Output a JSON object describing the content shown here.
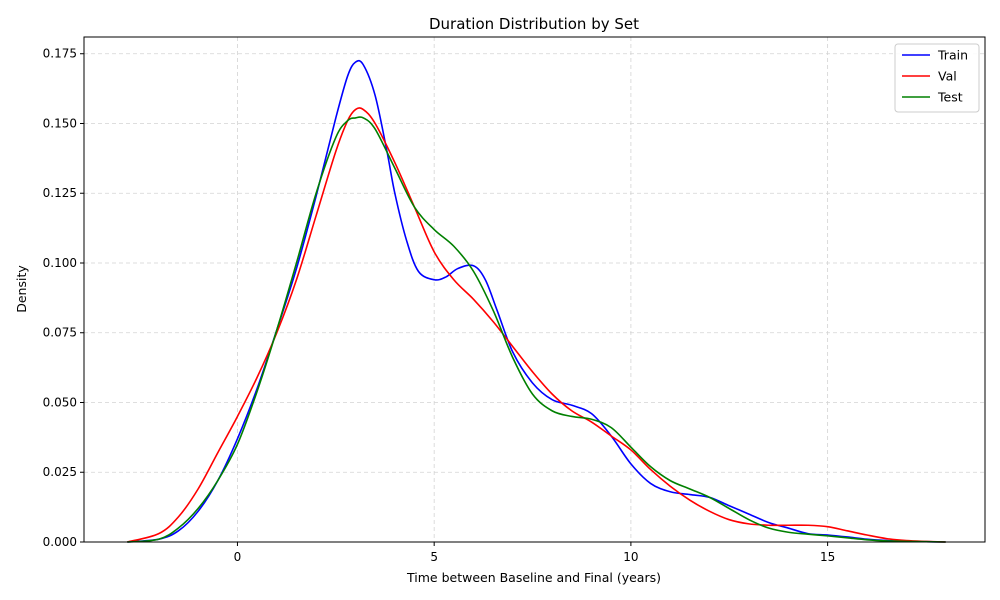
{
  "chart_data": {
    "type": "line",
    "title": "Duration Distribution by Set",
    "xlabel": "Time between Baseline and Final (years)",
    "ylabel": "Density",
    "xlim": [
      -3.9,
      19.0
    ],
    "ylim": [
      0,
      0.181
    ],
    "xticks": [
      0,
      5,
      10,
      15
    ],
    "xtick_labels": [
      "0",
      "5",
      "10",
      "15"
    ],
    "yticks": [
      0,
      0.025,
      0.05,
      0.075,
      0.1,
      0.125,
      0.15,
      0.175
    ],
    "ytick_labels": [
      "0.000",
      "0.025",
      "0.050",
      "0.075",
      "0.100",
      "0.125",
      "0.150",
      "0.175"
    ],
    "grid": true,
    "legend_position": "top-right",
    "series": [
      {
        "name": "Train",
        "color": "#0000ff",
        "x": [
          -2.8,
          -2.0,
          -1.5,
          -1.0,
          -0.5,
          0.0,
          0.5,
          1.0,
          1.5,
          2.0,
          2.5,
          2.8,
          3.0,
          3.2,
          3.5,
          3.8,
          4.0,
          4.3,
          4.6,
          5.0,
          5.3,
          5.6,
          6.0,
          6.3,
          6.6,
          7.0,
          7.5,
          8.0,
          8.5,
          9.0,
          9.5,
          10.0,
          10.5,
          11.0,
          11.5,
          12.0,
          12.5,
          13.0,
          13.5,
          14.0,
          14.5,
          15.0,
          15.5,
          16.0,
          16.5,
          17.0,
          17.5,
          18.0
        ],
        "values": [
          0.0,
          0.001,
          0.004,
          0.011,
          0.022,
          0.037,
          0.055,
          0.076,
          0.098,
          0.124,
          0.152,
          0.167,
          0.172,
          0.171,
          0.16,
          0.14,
          0.125,
          0.108,
          0.097,
          0.094,
          0.095,
          0.098,
          0.099,
          0.094,
          0.083,
          0.068,
          0.057,
          0.051,
          0.049,
          0.046,
          0.038,
          0.028,
          0.021,
          0.018,
          0.017,
          0.016,
          0.013,
          0.01,
          0.007,
          0.005,
          0.003,
          0.0025,
          0.0018,
          0.001,
          0.0005,
          0.0002,
          0.0001,
          0.0
        ],
        "label_y": 55
      },
      {
        "name": "Val",
        "color": "#ff0000",
        "x": [
          -2.8,
          -2.0,
          -1.5,
          -1.0,
          -0.5,
          0.0,
          0.5,
          1.0,
          1.5,
          2.0,
          2.5,
          2.8,
          3.0,
          3.2,
          3.5,
          4.0,
          4.5,
          5.0,
          5.5,
          6.0,
          6.5,
          7.0,
          7.5,
          8.0,
          8.5,
          9.0,
          9.5,
          10.0,
          10.5,
          11.0,
          11.5,
          12.0,
          12.5,
          13.0,
          13.5,
          14.0,
          14.5,
          15.0,
          15.5,
          16.0,
          16.5,
          17.0,
          17.5,
          18.0
        ],
        "values": [
          0.0,
          0.003,
          0.009,
          0.019,
          0.032,
          0.045,
          0.059,
          0.075,
          0.094,
          0.117,
          0.14,
          0.151,
          0.155,
          0.155,
          0.15,
          0.136,
          0.12,
          0.104,
          0.094,
          0.087,
          0.079,
          0.07,
          0.061,
          0.053,
          0.047,
          0.043,
          0.038,
          0.033,
          0.026,
          0.02,
          0.015,
          0.011,
          0.008,
          0.0065,
          0.006,
          0.006,
          0.006,
          0.0055,
          0.004,
          0.0025,
          0.0012,
          0.0005,
          0.0002,
          0.0
        ],
        "label_y": 76
      },
      {
        "name": "Test",
        "color": "#008000",
        "x": [
          -2.8,
          -2.0,
          -1.5,
          -1.0,
          -0.5,
          0.0,
          0.5,
          1.0,
          1.5,
          2.0,
          2.5,
          2.8,
          3.0,
          3.2,
          3.5,
          4.0,
          4.5,
          5.0,
          5.5,
          6.0,
          6.5,
          7.0,
          7.5,
          8.0,
          8.5,
          9.0,
          9.5,
          10.0,
          10.5,
          11.0,
          11.5,
          12.0,
          12.5,
          13.0,
          13.5,
          14.0,
          14.5,
          15.0,
          15.5,
          16.0,
          16.5,
          17.0,
          17.5,
          18.0
        ],
        "values": [
          0.0,
          0.001,
          0.005,
          0.012,
          0.022,
          0.035,
          0.054,
          0.076,
          0.1,
          0.125,
          0.145,
          0.151,
          0.152,
          0.152,
          0.148,
          0.134,
          0.12,
          0.112,
          0.106,
          0.097,
          0.083,
          0.066,
          0.053,
          0.047,
          0.045,
          0.044,
          0.041,
          0.034,
          0.027,
          0.022,
          0.019,
          0.016,
          0.012,
          0.008,
          0.005,
          0.0035,
          0.0028,
          0.0022,
          0.0015,
          0.0008,
          0.0004,
          0.0002,
          0.0001,
          0.0
        ],
        "label_y": 97
      }
    ]
  }
}
